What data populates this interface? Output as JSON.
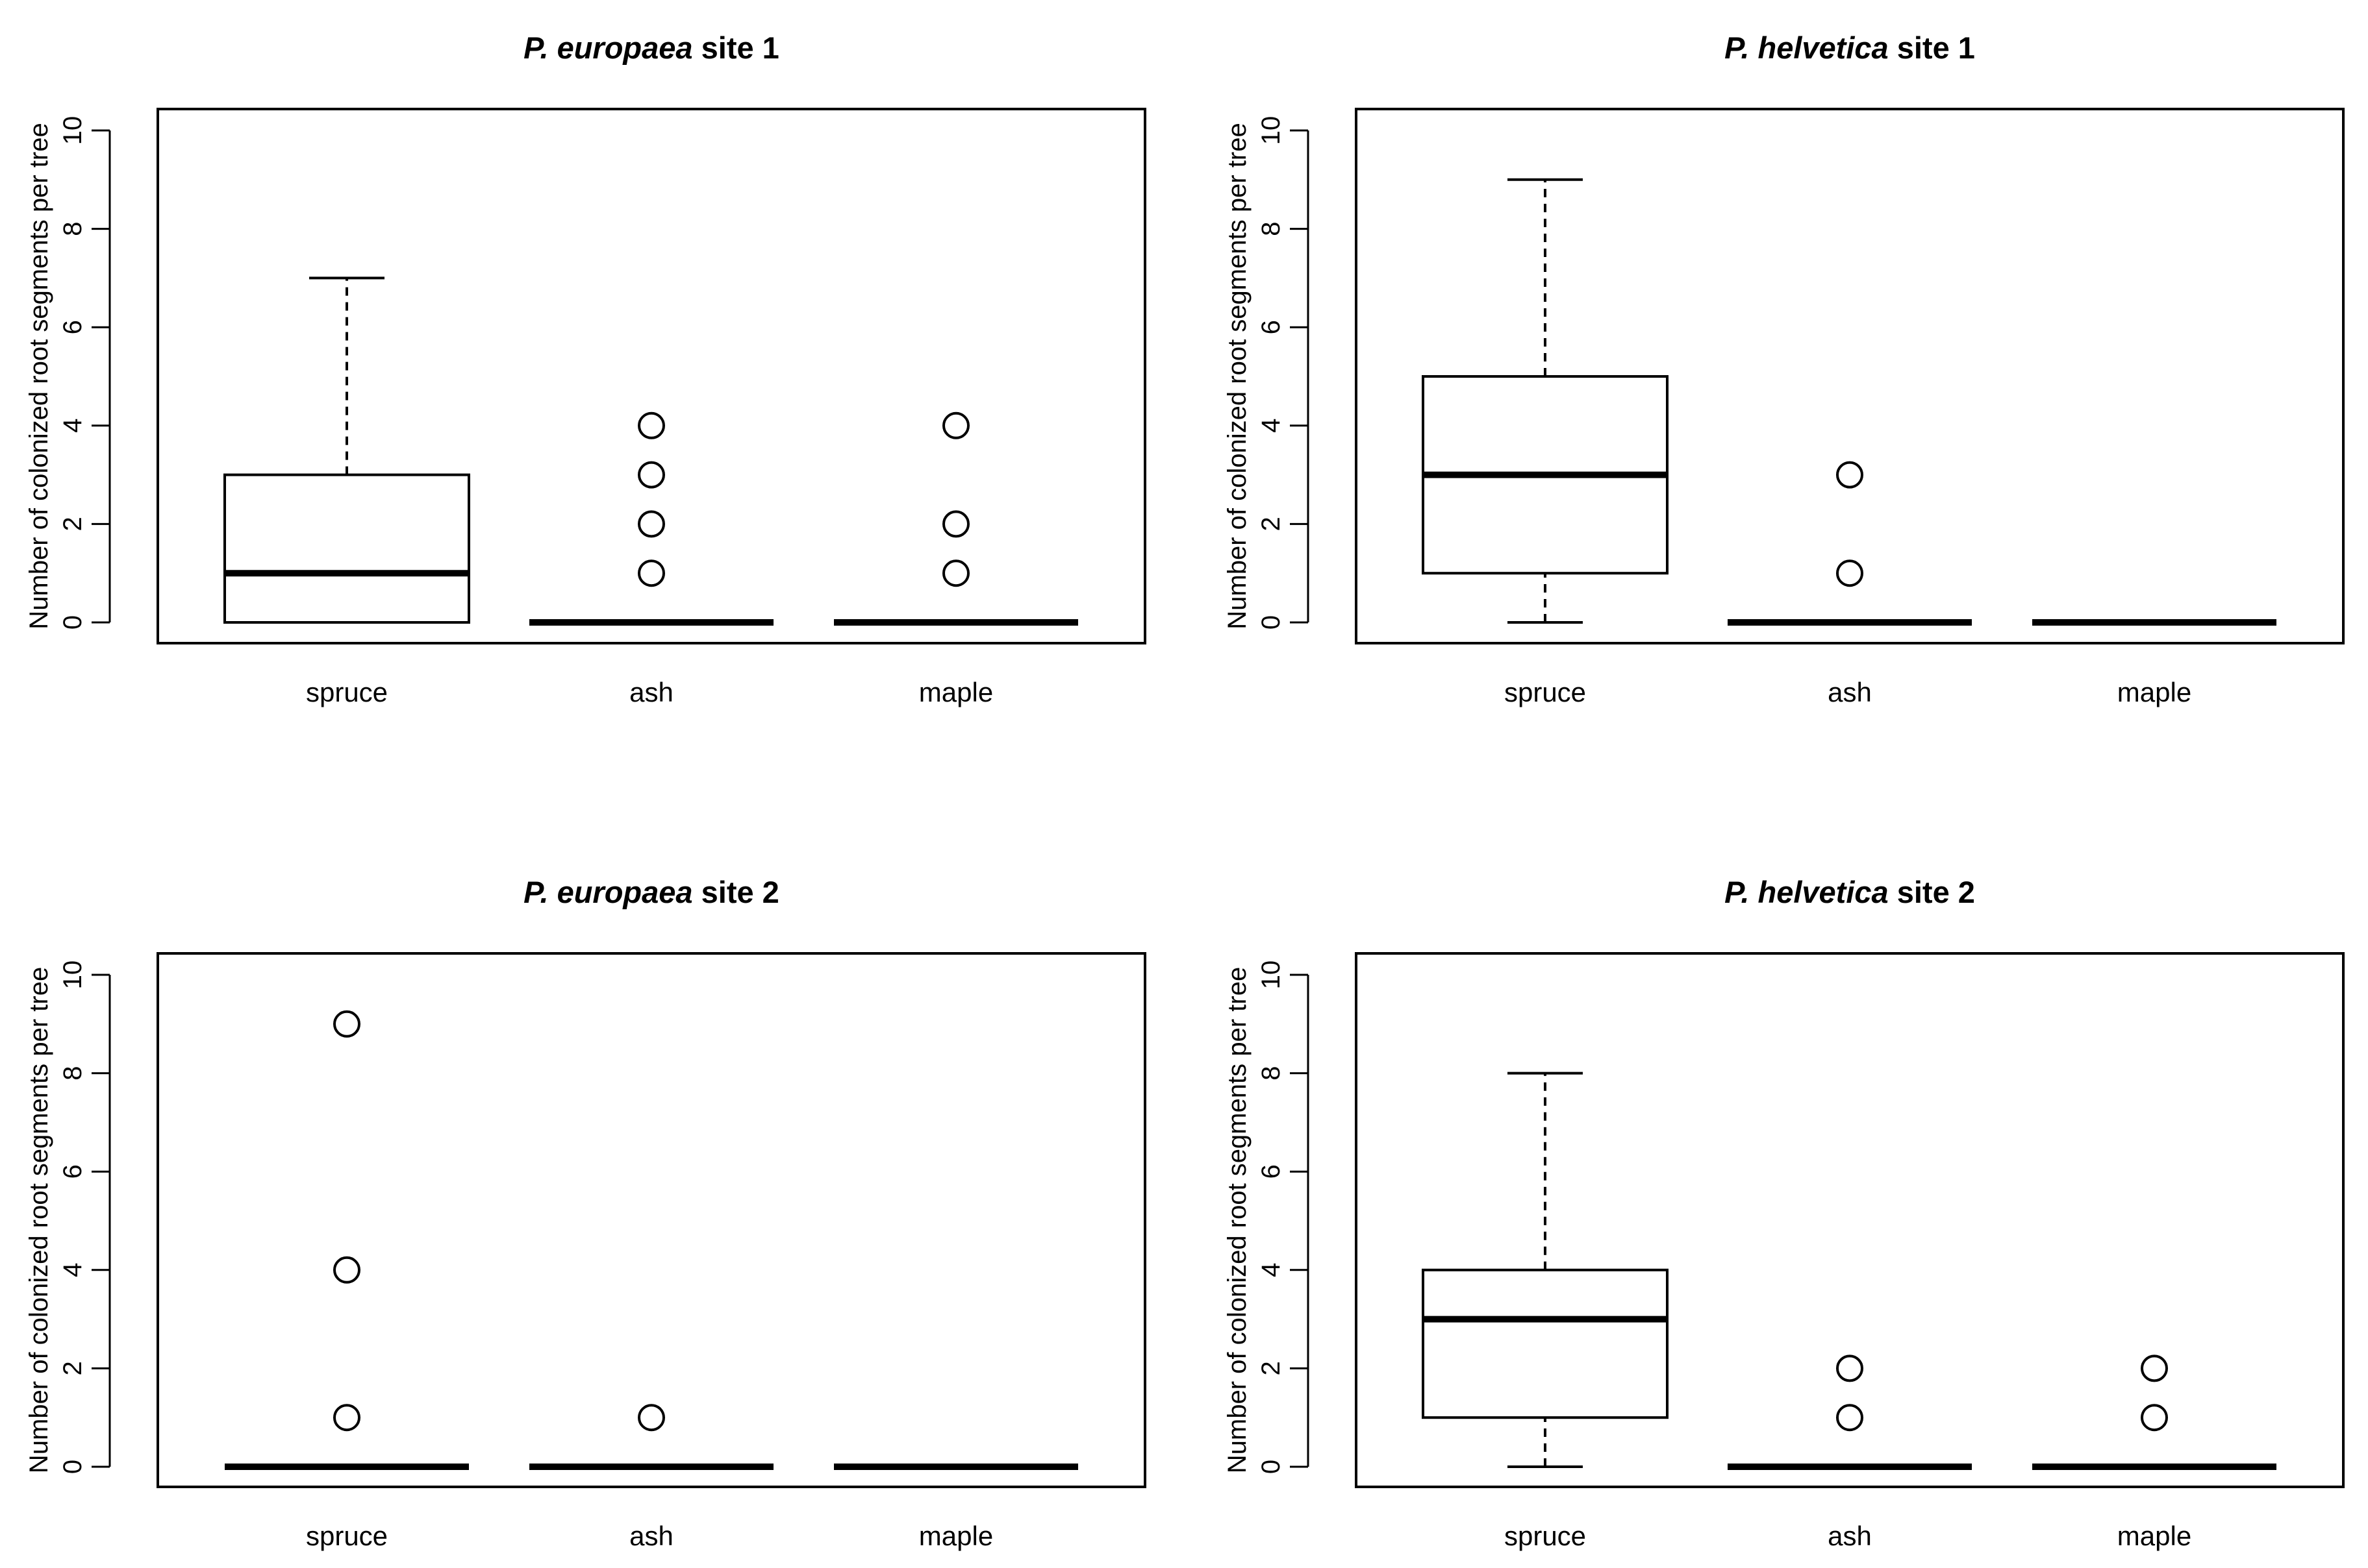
{
  "chart_data": [
    {
      "type": "box",
      "title_species": "P. europaea",
      "title_site": " site 1",
      "ylabel": "Number of colonized root segments per tree",
      "ylim": [
        0,
        10
      ],
      "yticks": [
        0,
        2,
        4,
        6,
        8,
        10
      ],
      "categories": [
        "spruce",
        "ash",
        "maple"
      ],
      "boxes": [
        {
          "category": "spruce",
          "min": 0,
          "q1": 0,
          "median": 1,
          "q3": 3,
          "max": 7,
          "outliers": []
        },
        {
          "category": "ash",
          "min": 0,
          "q1": 0,
          "median": 0,
          "q3": 0,
          "max": 0,
          "outliers": [
            1,
            2,
            3,
            4
          ]
        },
        {
          "category": "maple",
          "min": 0,
          "q1": 0,
          "median": 0,
          "q3": 0,
          "max": 0,
          "outliers": [
            1,
            2,
            4
          ]
        }
      ]
    },
    {
      "type": "box",
      "title_species": "P. helvetica",
      "title_site": " site 1",
      "ylabel": "Number of colonized root segments per tree",
      "ylim": [
        0,
        10
      ],
      "yticks": [
        0,
        2,
        4,
        6,
        8,
        10
      ],
      "categories": [
        "spruce",
        "ash",
        "maple"
      ],
      "boxes": [
        {
          "category": "spruce",
          "min": 0,
          "q1": 1,
          "median": 3,
          "q3": 5,
          "max": 9,
          "outliers": []
        },
        {
          "category": "ash",
          "min": 0,
          "q1": 0,
          "median": 0,
          "q3": 0,
          "max": 0,
          "outliers": [
            1,
            3
          ]
        },
        {
          "category": "maple",
          "min": 0,
          "q1": 0,
          "median": 0,
          "q3": 0,
          "max": 0,
          "outliers": []
        }
      ]
    },
    {
      "type": "box",
      "title_species": "P. europaea",
      "title_site": " site 2",
      "ylabel": "Number of colonized root segments per tree",
      "ylim": [
        0,
        10
      ],
      "yticks": [
        0,
        2,
        4,
        6,
        8,
        10
      ],
      "categories": [
        "spruce",
        "ash",
        "maple"
      ],
      "boxes": [
        {
          "category": "spruce",
          "min": 0,
          "q1": 0,
          "median": 0,
          "q3": 0,
          "max": 0,
          "outliers": [
            1,
            4,
            9
          ]
        },
        {
          "category": "ash",
          "min": 0,
          "q1": 0,
          "median": 0,
          "q3": 0,
          "max": 0,
          "outliers": [
            1
          ]
        },
        {
          "category": "maple",
          "min": 0,
          "q1": 0,
          "median": 0,
          "q3": 0,
          "max": 0,
          "outliers": []
        }
      ]
    },
    {
      "type": "box",
      "title_species": "P. helvetica",
      "title_site": " site 2",
      "ylabel": "Number of colonized root segments per tree",
      "ylim": [
        0,
        10
      ],
      "yticks": [
        0,
        2,
        4,
        6,
        8,
        10
      ],
      "categories": [
        "spruce",
        "ash",
        "maple"
      ],
      "boxes": [
        {
          "category": "spruce",
          "min": 0,
          "q1": 1,
          "median": 3,
          "q3": 4,
          "max": 8,
          "outliers": []
        },
        {
          "category": "ash",
          "min": 0,
          "q1": 0,
          "median": 0,
          "q3": 0,
          "max": 0,
          "outliers": [
            1,
            2
          ]
        },
        {
          "category": "maple",
          "min": 0,
          "q1": 0,
          "median": 0,
          "q3": 0,
          "max": 0,
          "outliers": [
            1,
            2
          ]
        }
      ]
    }
  ]
}
